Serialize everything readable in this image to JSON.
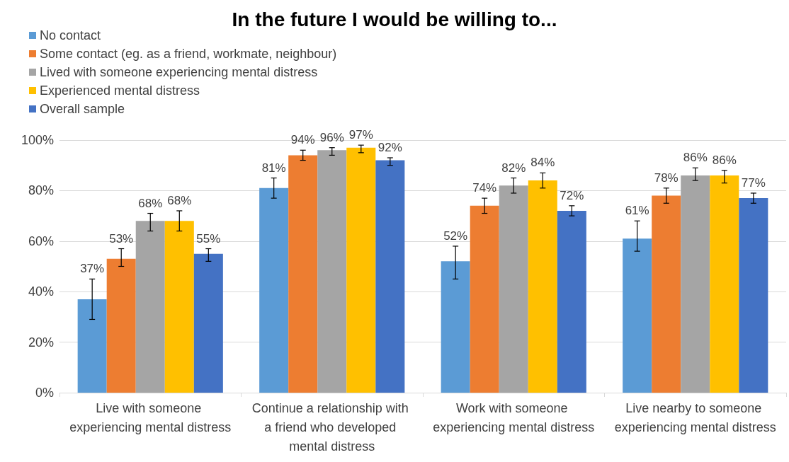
{
  "chart_data": {
    "type": "bar",
    "title": "In the future I would be willing to...",
    "categories": [
      "Live with someone experiencing mental distress",
      "Continue a relationship with a friend who developed mental distress",
      "Work with someone experiencing mental distress",
      "Live nearby to someone experiencing mental distress"
    ],
    "series": [
      {
        "name": "No contact",
        "color": "#5b9bd5",
        "values": [
          37,
          81,
          52,
          61
        ],
        "value_labels": [
          "37%",
          "81%",
          "52%",
          "61%"
        ],
        "errors": [
          [
            29,
            45
          ],
          [
            77,
            85
          ],
          [
            45,
            58
          ],
          [
            56,
            68
          ]
        ]
      },
      {
        "name": "Some contact (eg. as a friend, workmate, neighbour)",
        "color": "#ed7d31",
        "values": [
          53,
          94,
          74,
          78
        ],
        "value_labels": [
          "53%",
          "94%",
          "74%",
          "78%"
        ],
        "errors": [
          [
            50,
            57
          ],
          [
            92,
            96
          ],
          [
            71,
            77
          ],
          [
            75,
            81
          ]
        ]
      },
      {
        "name": "Lived with someone experiencing mental distress",
        "color": "#a5a5a5",
        "values": [
          68,
          96,
          82,
          86
        ],
        "value_labels": [
          "68%",
          "96%",
          "82%",
          "86%"
        ],
        "errors": [
          [
            64,
            71
          ],
          [
            94,
            97
          ],
          [
            79,
            85
          ],
          [
            84,
            89
          ]
        ]
      },
      {
        "name": "Experienced mental distress",
        "color": "#ffc000",
        "values": [
          68,
          97,
          84,
          86
        ],
        "value_labels": [
          "68%",
          "97%",
          "84%",
          "86%"
        ],
        "errors": [
          [
            64,
            72
          ],
          [
            95,
            98
          ],
          [
            81,
            87
          ],
          [
            83,
            88
          ]
        ]
      },
      {
        "name": "Overall sample",
        "color": "#4472c4",
        "values": [
          55,
          92,
          72,
          77
        ],
        "value_labels": [
          "55%",
          "92%",
          "72%",
          "77%"
        ],
        "errors": [
          [
            52,
            57
          ],
          [
            90,
            93
          ],
          [
            70,
            74
          ],
          [
            75,
            79
          ]
        ]
      }
    ],
    "ylim": [
      0,
      100
    ],
    "yticks": [
      {
        "value": 0,
        "label": "0%"
      },
      {
        "value": 20,
        "label": "20%"
      },
      {
        "value": 40,
        "label": "40%"
      },
      {
        "value": 60,
        "label": "60%"
      },
      {
        "value": 80,
        "label": "80%"
      },
      {
        "value": 100,
        "label": "100%"
      }
    ],
    "grid": "y",
    "legend": "top left"
  }
}
